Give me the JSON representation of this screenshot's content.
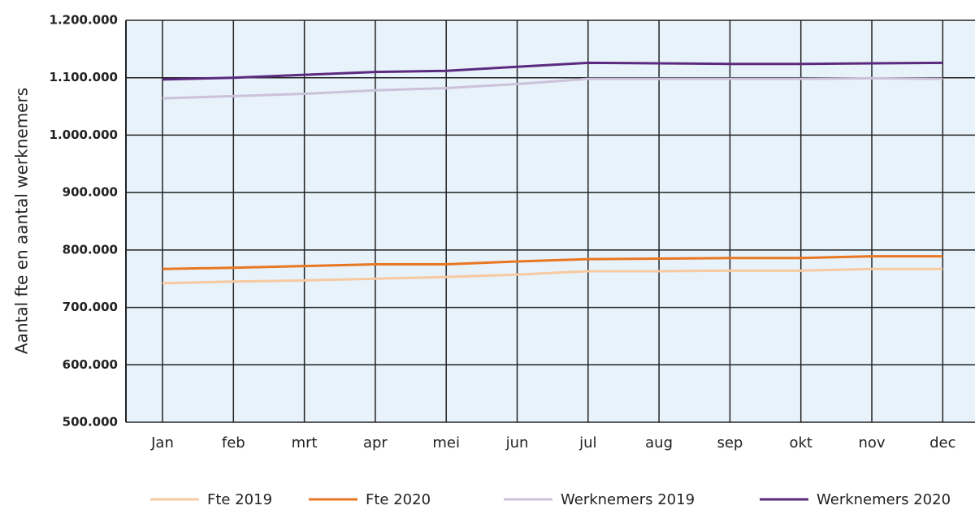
{
  "chart_data": {
    "type": "line",
    "y_label": "Aantal fte en aantal werknemers",
    "categories": [
      "Jan",
      "feb",
      "mrt",
      "apr",
      "mei",
      "jun",
      "jul",
      "aug",
      "sep",
      "okt",
      "nov",
      "dec"
    ],
    "series": [
      {
        "name": "Fte 2019",
        "color": "#f6c9a0",
        "values": [
          742000,
          745000,
          747000,
          750000,
          753000,
          757000,
          763000,
          763000,
          764000,
          764000,
          767000,
          767000
        ]
      },
      {
        "name": "Fte 2020",
        "color": "#e87722",
        "values": [
          767000,
          769000,
          772000,
          775000,
          775000,
          780000,
          784000,
          785000,
          786000,
          786000,
          789000,
          789000
        ]
      },
      {
        "name": "Werknemers 2019",
        "color": "#cbc2d9",
        "values": [
          1064000,
          1068000,
          1072000,
          1078000,
          1082000,
          1089000,
          1098000,
          1098000,
          1098000,
          1098000,
          1099000,
          1098000
        ]
      },
      {
        "name": "Werknemers 2020",
        "color": "#5b2a7e",
        "values": [
          1097000,
          1100000,
          1105000,
          1110000,
          1112000,
          1119000,
          1126000,
          1125000,
          1124000,
          1124000,
          1125000,
          1126000
        ]
      }
    ],
    "ylim": [
      500000,
      1200000
    ],
    "yticks": [
      {
        "value": 500000,
        "label": "500.000"
      },
      {
        "value": 600000,
        "label": "600.000"
      },
      {
        "value": 700000,
        "label": "700.000"
      },
      {
        "value": 800000,
        "label": "800.000"
      },
      {
        "value": 900000,
        "label": "900.000"
      },
      {
        "value": 1000000,
        "label": "1.000.000"
      },
      {
        "value": 1100000,
        "label": "1.100.000"
      },
      {
        "value": 1200000,
        "label": "1.200.000"
      }
    ],
    "grid": true,
    "legend": "bottom"
  }
}
